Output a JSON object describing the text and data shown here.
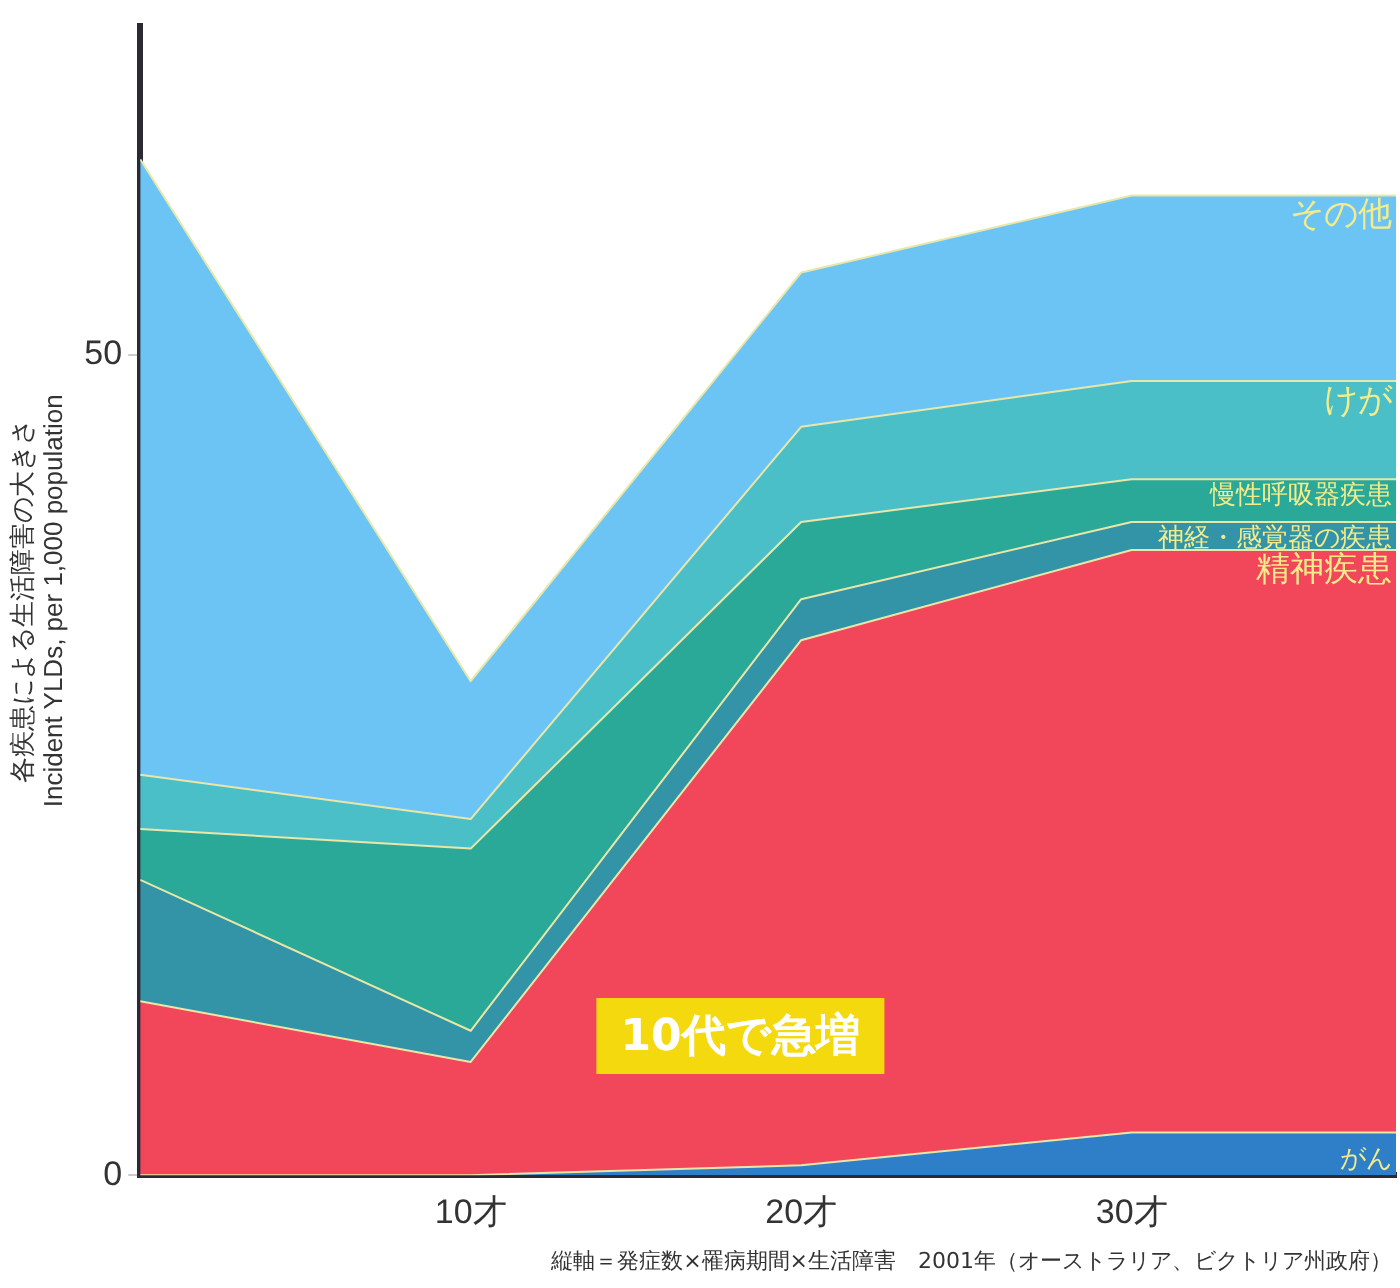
{
  "chart_data": {
    "type": "area",
    "stacked": true,
    "ylabel": "各疾患による生活障害の大きさ\nIncident YLDs, per 1,000 population",
    "x": [
      0,
      10,
      20,
      30,
      38
    ],
    "xlim": [
      0,
      38
    ],
    "xticks": [
      {
        "value": 0,
        "label": null
      },
      {
        "value": 10,
        "label": "10才"
      },
      {
        "value": 20,
        "label": "20才"
      },
      {
        "value": 30,
        "label": "30才"
      }
    ],
    "ylim": [
      0,
      70
    ],
    "yticks": [
      0,
      50
    ],
    "grid": false,
    "legend": false,
    "series": [
      {
        "name": "がん",
        "color": "#2f7fc8",
        "values": [
          0,
          0,
          0.6,
          2.6,
          2.6
        ]
      },
      {
        "name": "精神疾患",
        "color": "#f2475a",
        "values": [
          10.6,
          6.9,
          32.0,
          35.5,
          35.5
        ]
      },
      {
        "name": "神経・感覚器の疾患",
        "color": "#3394a8",
        "values": [
          7.4,
          1.9,
          2.5,
          1.7,
          1.7
        ]
      },
      {
        "name": "慢性呼吸器疾患",
        "color": "#2aa898",
        "values": [
          3.1,
          11.1,
          4.7,
          2.6,
          2.6
        ]
      },
      {
        "name": "けが",
        "color": "#4bbfc8",
        "values": [
          3.3,
          1.8,
          5.8,
          6.0,
          6.0
        ]
      },
      {
        "name": "その他",
        "color": "#6cc4f5",
        "values": [
          37.5,
          8.4,
          9.4,
          11.3,
          11.3
        ]
      }
    ],
    "annotations": [
      "10代で急増",
      "縦軸＝発症数×罹病期間×生活障害　2001年（オーストラリア、ビクトリア州政府）"
    ]
  }
}
